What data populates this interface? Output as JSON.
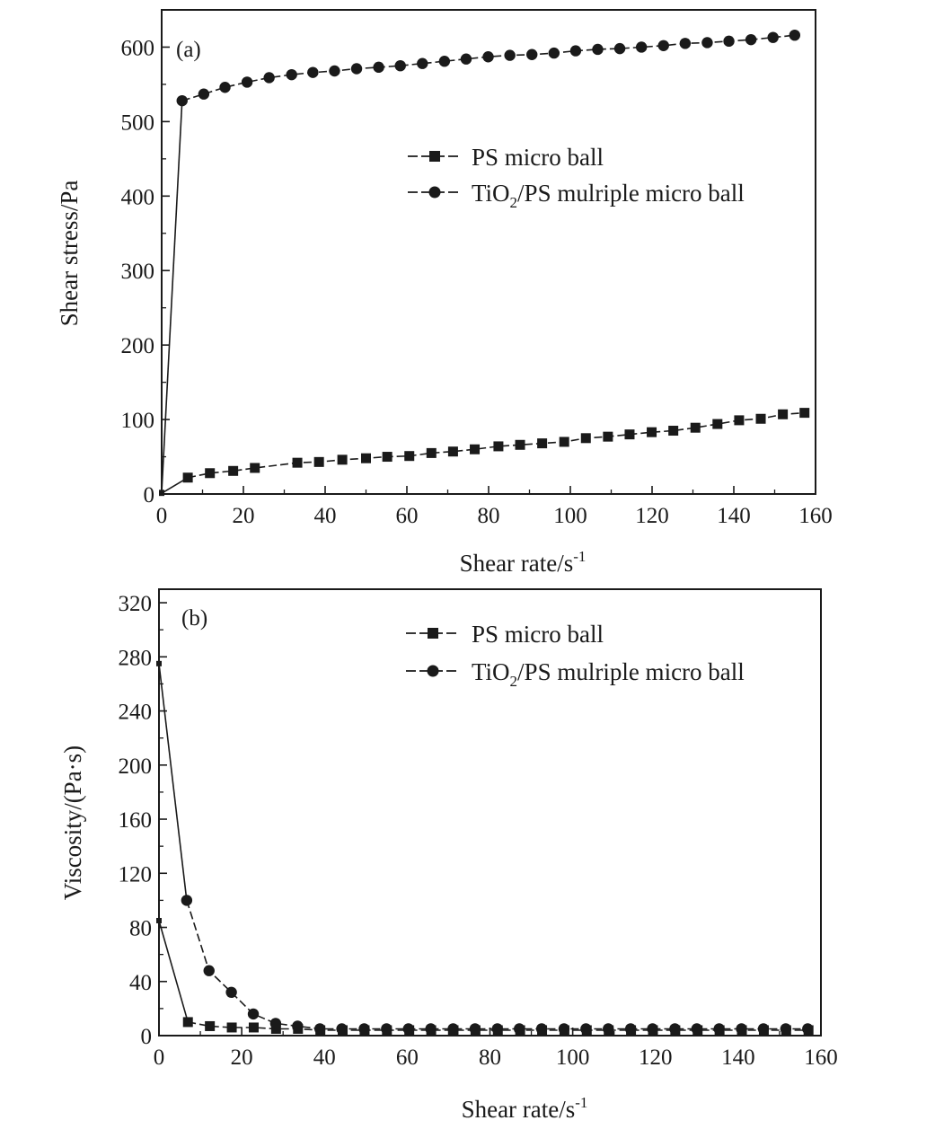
{
  "chart_data": [
    {
      "panel": "(a)",
      "type": "line",
      "xlabel": "Shear rate/s",
      "xlabel_sup": "-1",
      "ylabel": "Shear stress/Pa",
      "xlim": [
        0,
        160
      ],
      "ylim": [
        0,
        650
      ],
      "xticks": [
        0,
        20,
        40,
        60,
        80,
        100,
        120,
        140,
        160
      ],
      "yticks": [
        0,
        100,
        200,
        300,
        400,
        500,
        600
      ],
      "grid": false,
      "legend_position": "upper-right",
      "series": [
        {
          "name": "PS micro ball",
          "marker": "square",
          "x": [
            0,
            6.4,
            11.8,
            17.5,
            22.8,
            33.2,
            38.5,
            44.2,
            50.0,
            55.2,
            60.6,
            66.0,
            71.3,
            76.6,
            82.4,
            87.7,
            93.1,
            98.5,
            103.8,
            109.2,
            114.5,
            119.9,
            125.2,
            130.6,
            136.0,
            141.3,
            146.6,
            152.0,
            157.3
          ],
          "y": [
            1,
            22,
            28,
            31,
            35,
            42,
            43,
            46,
            48,
            50,
            51,
            55,
            57,
            60,
            64,
            66,
            68,
            70,
            75,
            77,
            80,
            83,
            85,
            89,
            94,
            99,
            101,
            107,
            109
          ]
        },
        {
          "name": "TiO2/PS mulriple micro ball",
          "name_main": "TiO",
          "name_sub": "2",
          "name_rest": "/PS mulriple micro ball",
          "marker": "circle",
          "x": [
            0,
            5.0,
            10.3,
            15.5,
            20.9,
            26.3,
            31.8,
            37.0,
            42.3,
            47.7,
            53.1,
            58.4,
            63.8,
            69.2,
            74.5,
            79.9,
            85.2,
            90.6,
            96.0,
            101.3,
            106.7,
            112.1,
            117.4,
            122.8,
            128.1,
            133.5,
            138.8,
            144.2,
            149.6,
            154.9
          ],
          "y": [
            2,
            528,
            537,
            546,
            553,
            559,
            563,
            566,
            568,
            571,
            573,
            575,
            578,
            581,
            584,
            587,
            589,
            590,
            592,
            595,
            597,
            598,
            600,
            602,
            605,
            606,
            608,
            610,
            613,
            616
          ]
        }
      ]
    },
    {
      "panel": "(b)",
      "type": "line",
      "xlabel": "Shear rate/s",
      "xlabel_sup": "-1",
      "ylabel": "Viscosity/(Pa·s)",
      "xlim": [
        0,
        160
      ],
      "ylim": [
        0,
        330
      ],
      "xticks": [
        0,
        20,
        40,
        60,
        80,
        100,
        120,
        140,
        160
      ],
      "yticks": [
        0,
        40,
        80,
        120,
        160,
        200,
        240,
        280,
        320
      ],
      "grid": false,
      "legend_position": "upper-right",
      "series": [
        {
          "name": "PS micro ball",
          "marker": "square",
          "x": [
            0,
            7.0,
            12.3,
            17.6,
            22.9,
            28.3,
            33.6,
            39.0,
            44.4,
            49.7,
            55.1,
            60.5,
            65.8,
            71.2,
            76.5,
            81.9,
            87.3,
            92.6,
            98.0,
            103.4,
            108.7,
            114.1,
            119.4,
            124.8,
            130.2,
            135.5,
            140.9,
            146.2,
            151.6,
            157.0
          ],
          "y": [
            85,
            10,
            7,
            6,
            6,
            5,
            5,
            4,
            4,
            4,
            4,
            4,
            4,
            4,
            4,
            4,
            4,
            4,
            4,
            4,
            4,
            4,
            4,
            4,
            4,
            4,
            4,
            4,
            4,
            4
          ]
        },
        {
          "name": "TiO2/PS mulriple micro ball",
          "name_main": "TiO",
          "name_sub": "2",
          "name_rest": "/PS mulriple micro ball",
          "marker": "circle",
          "x": [
            0,
            6.7,
            12.1,
            17.5,
            22.8,
            28.2,
            33.5,
            38.9,
            44.2,
            49.6,
            55.0,
            60.3,
            65.7,
            71.1,
            76.4,
            81.8,
            87.1,
            92.5,
            97.9,
            103.2,
            108.6,
            114.0,
            119.3,
            124.7,
            130.0,
            135.4,
            140.8,
            146.1,
            151.5,
            156.8
          ],
          "y": [
            275,
            100,
            48,
            32,
            16,
            9,
            7,
            5,
            5,
            5,
            5,
            5,
            5,
            5,
            5,
            5,
            5,
            5,
            5,
            5,
            5,
            5,
            5,
            5,
            5,
            5,
            5,
            5,
            5,
            5
          ]
        }
      ]
    }
  ]
}
